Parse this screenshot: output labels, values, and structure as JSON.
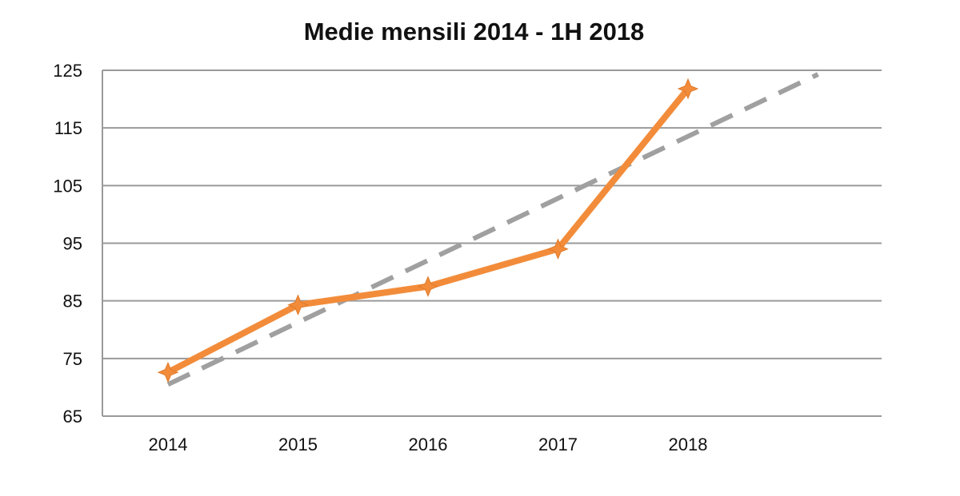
{
  "chart_data": {
    "type": "line",
    "title": "Medie mensili 2014 - 1H 2018",
    "xlabel": "",
    "ylabel": "",
    "categories": [
      "2014",
      "2015",
      "2016",
      "2017",
      "2018"
    ],
    "ylim": [
      65,
      125
    ],
    "yticks": [
      65,
      75,
      85,
      95,
      105,
      115,
      125
    ],
    "grid": true,
    "legend": "none",
    "series": [
      {
        "values": [
          72.6,
          84.3,
          87.5,
          94.0,
          121.8
        ],
        "color": "#f28c3a",
        "marker": "star"
      }
    ],
    "trendline": {
      "style": "dashed",
      "color": "#a0a0a0",
      "start": {
        "x": 1,
        "y": 70.5
      },
      "end": {
        "x": 6,
        "y": 124.3
      }
    }
  }
}
